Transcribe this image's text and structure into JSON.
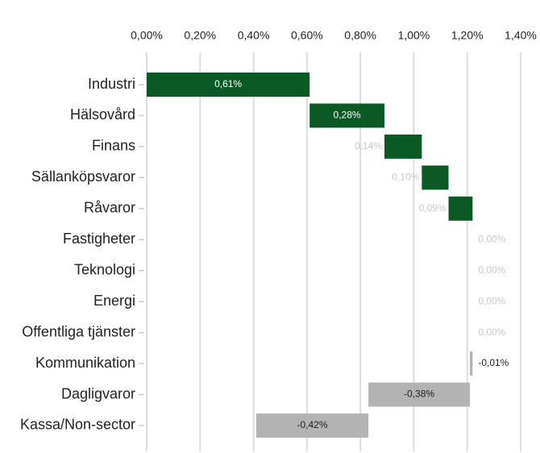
{
  "chart_data": {
    "type": "waterfall-bar",
    "categories": [
      "Industri",
      "Hälsovård",
      "Finans",
      "Sällanköpsvaror",
      "Råvaror",
      "Fastigheter",
      "Teknologi",
      "Energi",
      "Offentliga tjänster",
      "Kommunikation",
      "Dagligvaror",
      "Kassa/Non-sector"
    ],
    "values": [
      0.61,
      0.28,
      0.14,
      0.1,
      0.09,
      0.0,
      0.0,
      0.0,
      0.0,
      -0.01,
      -0.38,
      -0.42
    ],
    "value_labels": [
      "0,61%",
      "0,28%",
      "0,14%",
      "0,10%",
      "0,09%",
      "0,00%",
      "0,00%",
      "0,00%",
      "0,00%",
      "-0,01%",
      "-0,38%",
      "-0,42%"
    ],
    "positive_color": "#0b5a26",
    "negative_color": "#b3b3b3",
    "xlim": [
      0,
      1.4
    ],
    "xticks": [
      {
        "value": 0,
        "label": "0,00%"
      },
      {
        "value": 0.2,
        "label": "0,20%"
      },
      {
        "value": 0.4,
        "label": "0,40%"
      },
      {
        "value": 0.6,
        "label": "0,60%"
      },
      {
        "value": 0.8,
        "label": "0,80%"
      },
      {
        "value": 1.0,
        "label": "1,00%"
      },
      {
        "value": 1.2,
        "label": "1,20%"
      },
      {
        "value": 1.4,
        "label": "1,40%"
      }
    ],
    "grid": true
  }
}
